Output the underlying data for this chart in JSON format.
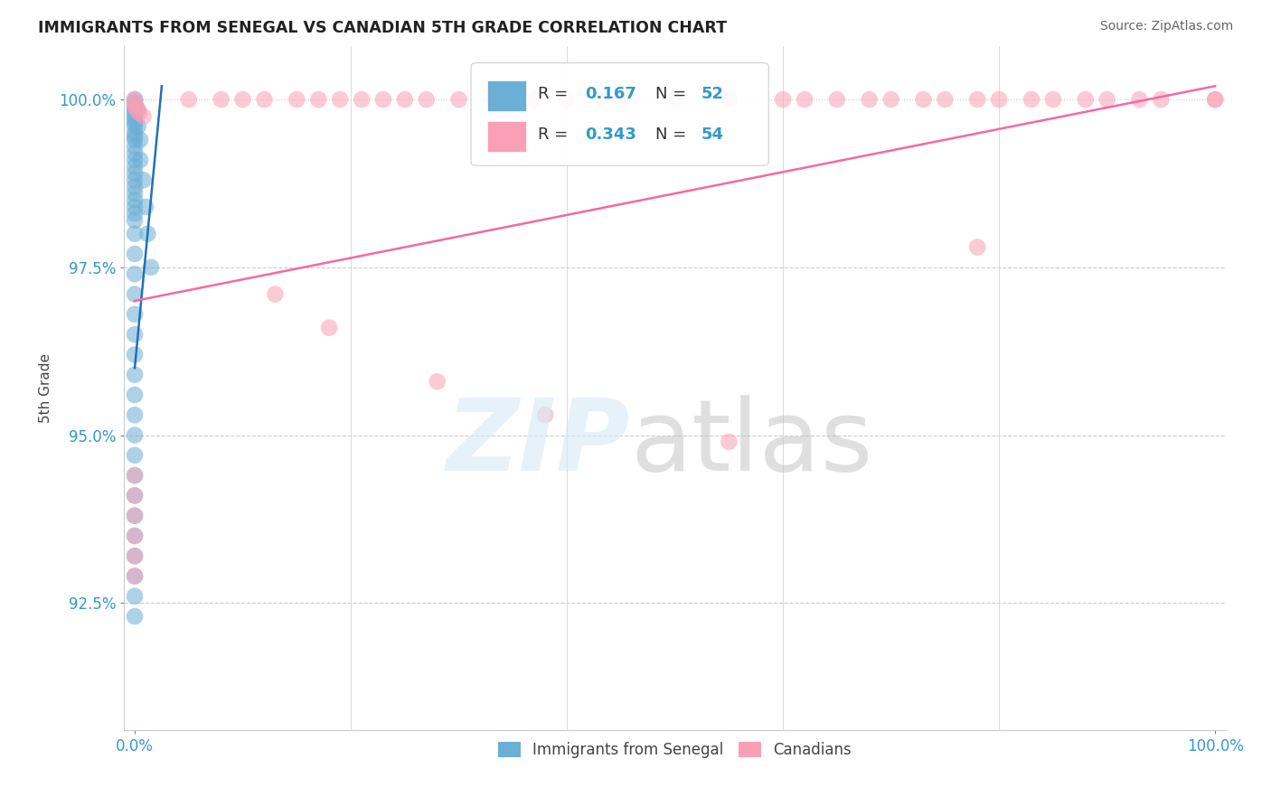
{
  "title": "IMMIGRANTS FROM SENEGAL VS CANADIAN 5TH GRADE CORRELATION CHART",
  "source": "Source: ZipAtlas.com",
  "ylabel": "5th Grade",
  "series1_label": "Immigrants from Senegal",
  "series2_label": "Canadians",
  "color1": "#6baed6",
  "color2": "#fa9fb5",
  "trendline1_color": "#2171b5",
  "trendline2_color": "#f768a1",
  "background_color": "#ffffff",
  "xlim": [
    -0.01,
    1.01
  ],
  "ylim": [
    0.906,
    1.008
  ],
  "yticks": [
    0.925,
    0.95,
    0.975,
    1.0
  ],
  "ytick_labels": [
    "92.5%",
    "95.0%",
    "97.5%",
    "100.0%"
  ],
  "xticks": [
    0.0,
    1.0
  ],
  "xtick_labels": [
    "0.0%",
    "100.0%"
  ],
  "blue_x": [
    0.0,
    0.0,
    0.0,
    0.0,
    0.0,
    0.0,
    0.0,
    0.0,
    0.0,
    0.0,
    0.0,
    0.0,
    0.0,
    0.0,
    0.0,
    0.0,
    0.0,
    0.0,
    0.0,
    0.0,
    0.0,
    0.0,
    0.0,
    0.0,
    0.003,
    0.003,
    0.005,
    0.005,
    0.008,
    0.01,
    0.012,
    0.015,
    0.0,
    0.0,
    0.0,
    0.0,
    0.0,
    0.0,
    0.0,
    0.0,
    0.0,
    0.0,
    0.0,
    0.0,
    0.0,
    0.0,
    0.0,
    0.0,
    0.0,
    0.0,
    0.0,
    0.0
  ],
  "blue_y": [
    1.0,
    0.9995,
    0.999,
    0.9985,
    0.998,
    0.9975,
    0.997,
    0.9965,
    0.996,
    0.995,
    0.9945,
    0.994,
    0.993,
    0.992,
    0.991,
    0.99,
    0.989,
    0.988,
    0.987,
    0.986,
    0.985,
    0.984,
    0.983,
    0.982,
    0.9985,
    0.996,
    0.994,
    0.991,
    0.988,
    0.984,
    0.98,
    0.975,
    0.98,
    0.977,
    0.974,
    0.971,
    0.968,
    0.965,
    0.962,
    0.959,
    0.956,
    0.953,
    0.95,
    0.947,
    0.944,
    0.941,
    0.938,
    0.935,
    0.932,
    0.929,
    0.926,
    0.923
  ],
  "pink_x": [
    0.0,
    0.0,
    0.0,
    0.002,
    0.004,
    0.008,
    0.05,
    0.08,
    0.1,
    0.12,
    0.15,
    0.17,
    0.19,
    0.21,
    0.23,
    0.25,
    0.27,
    0.3,
    0.33,
    0.35,
    0.37,
    0.4,
    0.43,
    0.45,
    0.5,
    0.55,
    0.6,
    0.62,
    0.65,
    0.68,
    0.7,
    0.73,
    0.75,
    0.78,
    0.8,
    0.83,
    0.85,
    0.88,
    0.9,
    0.93,
    0.95,
    1.0,
    1.0,
    0.13,
    0.18,
    0.28,
    0.38,
    0.55,
    0.78,
    0.0,
    0.0,
    0.0,
    0.0,
    0.0,
    0.0
  ],
  "pink_y": [
    1.0,
    0.9995,
    0.999,
    0.9985,
    0.998,
    0.9975,
    1.0,
    1.0,
    1.0,
    1.0,
    1.0,
    1.0,
    1.0,
    1.0,
    1.0,
    1.0,
    1.0,
    1.0,
    1.0,
    1.0,
    1.0,
    1.0,
    1.0,
    1.0,
    1.0,
    1.0,
    1.0,
    1.0,
    1.0,
    1.0,
    1.0,
    1.0,
    1.0,
    1.0,
    1.0,
    1.0,
    1.0,
    1.0,
    1.0,
    1.0,
    1.0,
    1.0,
    1.0,
    0.971,
    0.966,
    0.958,
    0.953,
    0.949,
    0.978,
    0.944,
    0.941,
    0.938,
    0.935,
    0.932,
    0.929
  ],
  "blue_trend_x": [
    0.0,
    0.025
  ],
  "blue_trend_y": [
    0.96,
    1.002
  ],
  "pink_trend_x": [
    0.0,
    1.0
  ],
  "pink_trend_y": [
    0.97,
    1.002
  ]
}
